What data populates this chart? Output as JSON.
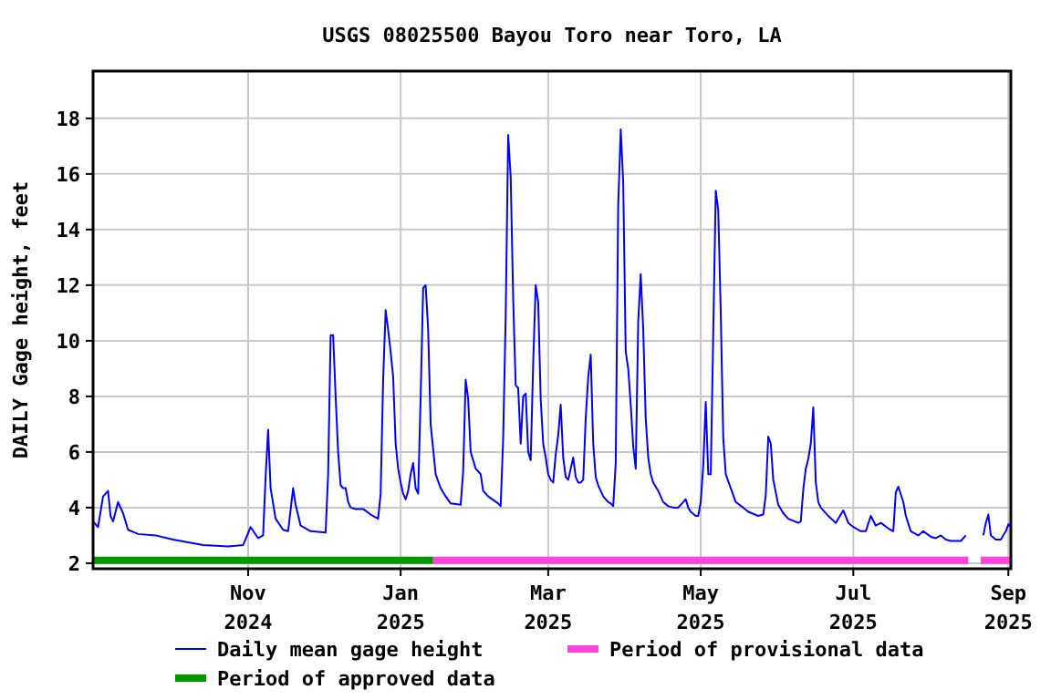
{
  "chart_data": {
    "type": "line",
    "title": "USGS 08025500 Bayou Toro near Toro, LA",
    "ylabel": "DAILY Gage height, feet",
    "x": [
      "2024-08-31",
      "2024-09-02",
      "2024-09-04",
      "2024-09-06",
      "2024-09-07",
      "2024-09-08",
      "2024-09-10",
      "2024-09-12",
      "2024-09-14",
      "2024-09-18",
      "2024-09-25",
      "2024-10-02",
      "2024-10-14",
      "2024-10-24",
      "2024-10-30",
      "2024-11-02",
      "2024-11-05",
      "2024-11-07",
      "2024-11-08",
      "2024-11-09",
      "2024-11-10",
      "2024-11-12",
      "2024-11-15",
      "2024-11-17",
      "2024-11-19",
      "2024-11-20",
      "2024-11-22",
      "2024-11-26",
      "2024-12-02",
      "2024-12-03",
      "2024-12-04",
      "2024-12-05",
      "2024-12-06",
      "2024-12-07",
      "2024-12-08",
      "2024-12-09",
      "2024-12-10",
      "2024-12-11",
      "2024-12-12",
      "2024-12-14",
      "2024-12-17",
      "2024-12-20",
      "2024-12-23",
      "2024-12-24",
      "2024-12-25",
      "2024-12-26",
      "2024-12-27",
      "2024-12-28",
      "2024-12-29",
      "2024-12-30",
      "2024-12-31",
      "2025-01-01",
      "2025-01-02",
      "2025-01-03",
      "2025-01-04",
      "2025-01-05",
      "2025-01-06",
      "2025-01-07",
      "2025-01-08",
      "2025-01-09",
      "2025-01-10",
      "2025-01-11",
      "2025-01-12",
      "2025-01-13",
      "2025-01-14",
      "2025-01-15",
      "2025-01-17",
      "2025-01-19",
      "2025-01-21",
      "2025-01-25",
      "2025-01-26",
      "2025-01-27",
      "2025-01-28",
      "2025-01-29",
      "2025-01-31",
      "2025-02-02",
      "2025-02-03",
      "2025-02-05",
      "2025-02-09",
      "2025-02-10",
      "2025-02-11",
      "2025-02-12",
      "2025-02-13",
      "2025-02-14",
      "2025-02-15",
      "2025-02-16",
      "2025-02-17",
      "2025-02-18",
      "2025-02-19",
      "2025-02-20",
      "2025-02-21",
      "2025-02-22",
      "2025-02-23",
      "2025-02-24",
      "2025-02-25",
      "2025-02-26",
      "2025-02-27",
      "2025-02-28",
      "2025-03-01",
      "2025-03-02",
      "2025-03-03",
      "2025-03-04",
      "2025-03-05",
      "2025-03-06",
      "2025-03-07",
      "2025-03-08",
      "2025-03-09",
      "2025-03-10",
      "2025-03-11",
      "2025-03-12",
      "2025-03-13",
      "2025-03-14",
      "2025-03-15",
      "2025-03-16",
      "2025-03-17",
      "2025-03-18",
      "2025-03-19",
      "2025-03-20",
      "2025-03-21",
      "2025-03-22",
      "2025-03-23",
      "2025-03-24",
      "2025-03-25",
      "2025-03-26",
      "2025-03-27",
      "2025-03-28",
      "2025-03-29",
      "2025-03-30",
      "2025-03-31",
      "2025-04-01",
      "2025-04-02",
      "2025-04-03",
      "2025-04-04",
      "2025-04-05",
      "2025-04-06",
      "2025-04-07",
      "2025-04-08",
      "2025-04-09",
      "2025-04-10",
      "2025-04-11",
      "2025-04-12",
      "2025-04-14",
      "2025-04-15",
      "2025-04-16",
      "2025-04-18",
      "2025-04-20",
      "2025-04-22",
      "2025-04-24",
      "2025-04-25",
      "2025-04-26",
      "2025-04-27",
      "2025-04-29",
      "2025-04-30",
      "2025-05-01",
      "2025-05-02",
      "2025-05-03",
      "2025-05-04",
      "2025-05-05",
      "2025-05-06",
      "2025-05-07",
      "2025-05-08",
      "2025-05-09",
      "2025-05-10",
      "2025-05-11",
      "2025-05-13",
      "2025-05-15",
      "2025-05-18",
      "2025-05-20",
      "2025-05-24",
      "2025-05-26",
      "2025-05-27",
      "2025-05-28",
      "2025-05-29",
      "2025-05-30",
      "2025-06-01",
      "2025-06-03",
      "2025-06-05",
      "2025-06-09",
      "2025-06-10",
      "2025-06-11",
      "2025-06-12",
      "2025-06-13",
      "2025-06-14",
      "2025-06-15",
      "2025-06-16",
      "2025-06-17",
      "2025-06-18",
      "2025-06-21",
      "2025-06-24",
      "2025-06-25",
      "2025-06-27",
      "2025-06-29",
      "2025-07-01",
      "2025-07-04",
      "2025-07-06",
      "2025-07-08",
      "2025-07-10",
      "2025-07-12",
      "2025-07-15",
      "2025-07-17",
      "2025-07-18",
      "2025-07-19",
      "2025-07-21",
      "2025-07-22",
      "2025-07-24",
      "2025-07-27",
      "2025-07-29",
      "2025-08-01",
      "2025-08-03",
      "2025-08-05",
      "2025-08-07",
      "2025-08-09",
      "2025-08-13",
      "2025-08-15",
      "2025-08-16",
      "2025-08-22",
      "2025-08-23",
      "2025-08-24",
      "2025-08-25",
      "2025-08-27",
      "2025-08-29",
      "2025-08-31",
      "2025-09-01",
      "2025-09-02"
    ],
    "series": [
      {
        "name": "Daily mean gage height",
        "color": "#0000ff",
        "values": [
          3.5,
          3.3,
          4.4,
          4.6,
          3.7,
          3.5,
          4.2,
          3.8,
          3.2,
          3.05,
          3.0,
          2.85,
          2.65,
          2.6,
          2.65,
          3.3,
          2.9,
          3.0,
          5.1,
          6.8,
          4.7,
          3.6,
          3.2,
          3.15,
          4.7,
          4.1,
          3.35,
          3.15,
          3.1,
          5.2,
          10.2,
          10.2,
          8.0,
          6.0,
          4.8,
          4.7,
          4.7,
          4.2,
          4.0,
          3.95,
          3.95,
          3.75,
          3.6,
          4.5,
          8.6,
          11.1,
          10.4,
          9.6,
          8.7,
          6.3,
          5.4,
          4.9,
          4.5,
          4.3,
          4.6,
          5.2,
          5.6,
          4.7,
          4.5,
          8.0,
          11.9,
          12.0,
          10.4,
          7.0,
          6.1,
          5.2,
          4.7,
          4.4,
          4.15,
          4.1,
          5.3,
          8.6,
          7.9,
          6.0,
          5.4,
          5.2,
          4.6,
          4.4,
          4.15,
          4.05,
          6.5,
          10.9,
          17.4,
          15.9,
          11.5,
          8.4,
          8.3,
          6.3,
          8.0,
          8.1,
          6.0,
          5.7,
          9.2,
          12.0,
          11.4,
          7.9,
          6.3,
          5.8,
          5.2,
          5.0,
          4.9,
          5.9,
          6.6,
          7.7,
          5.8,
          5.1,
          5.0,
          5.4,
          5.8,
          5.1,
          4.9,
          4.9,
          5.0,
          7.2,
          8.7,
          9.5,
          6.3,
          5.1,
          4.8,
          4.6,
          4.4,
          4.3,
          4.2,
          4.15,
          4.05,
          5.6,
          14.9,
          17.6,
          15.7,
          9.6,
          9.0,
          7.7,
          6.2,
          5.4,
          10.7,
          12.4,
          10.4,
          7.2,
          5.8,
          5.2,
          4.9,
          4.6,
          4.4,
          4.2,
          4.05,
          4.0,
          4.0,
          4.2,
          4.3,
          4.0,
          3.85,
          3.7,
          3.7,
          4.2,
          5.5,
          7.8,
          5.2,
          5.2,
          10.3,
          15.4,
          14.7,
          11.0,
          6.5,
          5.2,
          4.7,
          4.2,
          4.0,
          3.85,
          3.7,
          3.75,
          4.45,
          6.55,
          6.3,
          5.0,
          4.1,
          3.8,
          3.6,
          3.45,
          3.5,
          4.65,
          5.4,
          5.75,
          6.3,
          7.6,
          4.9,
          4.2,
          4.0,
          3.7,
          3.45,
          3.6,
          3.9,
          3.45,
          3.3,
          3.15,
          3.15,
          3.7,
          3.35,
          3.45,
          3.25,
          3.15,
          4.55,
          4.75,
          4.2,
          3.7,
          3.15,
          3.0,
          3.15,
          2.95,
          2.9,
          3.0,
          2.85,
          2.8,
          2.8,
          3.0,
          null,
          3.0,
          3.45,
          3.75,
          3.0,
          2.85,
          2.85,
          3.15,
          3.4,
          3.3
        ]
      },
      {
        "name": "Period of approved data",
        "color": "#009900",
        "x": [
          "2024-08-31",
          "2025-01-14"
        ],
        "values": [
          2.1,
          2.1
        ]
      },
      {
        "name": "Period of provisional data",
        "color": "#ff44dd",
        "x": [
          "2025-01-14",
          "2025-08-16",
          "2025-08-18",
          "2025-08-21",
          "2025-09-02"
        ],
        "values": [
          2.1,
          2.1,
          null,
          2.1,
          2.1
        ]
      }
    ],
    "xlim": [
      "2024-08-31",
      "2025-09-02"
    ],
    "xticks": [
      {
        "value": "2024-11-01",
        "label": "Nov 2024"
      },
      {
        "value": "2025-01-01",
        "label": "Jan 2025"
      },
      {
        "value": "2025-03-01",
        "label": "Mar 2025"
      },
      {
        "value": "2025-05-01",
        "label": "May 2025"
      },
      {
        "value": "2025-07-01",
        "label": "Jul 2025"
      },
      {
        "value": "2025-09-01",
        "label": "Sep 2025"
      }
    ],
    "ylim": [
      1.8,
      19.7
    ],
    "yticks": [
      2,
      4,
      6,
      8,
      10,
      12,
      14,
      16,
      18
    ],
    "grid": true,
    "legend": "bottom"
  }
}
